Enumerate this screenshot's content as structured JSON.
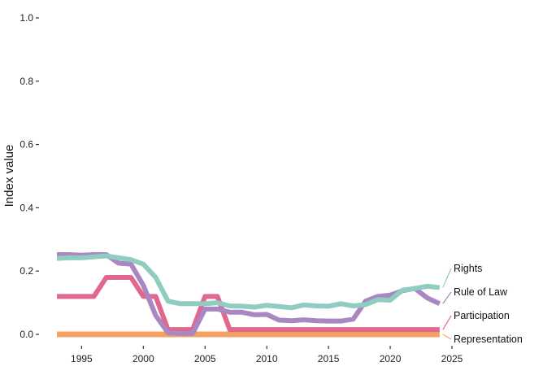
{
  "chart_data": {
    "type": "line",
    "title": "",
    "xlabel": "",
    "ylabel": "Index value",
    "xlim": [
      1993,
      2025
    ],
    "ylim": [
      0,
      1.0
    ],
    "xticks": [
      1995,
      2000,
      2005,
      2010,
      2015,
      2020,
      2025
    ],
    "yticks": [
      "0.0",
      "0.2",
      "0.4",
      "0.6",
      "0.8",
      "1.0"
    ],
    "grid": false,
    "legend_placement": "right, labels at line ends",
    "x": [
      1993,
      1994,
      1995,
      1996,
      1997,
      1998,
      1999,
      2000,
      2001,
      2002,
      2003,
      2004,
      2005,
      2006,
      2007,
      2008,
      2009,
      2010,
      2011,
      2012,
      2013,
      2014,
      2015,
      2016,
      2017,
      2018,
      2019,
      2020,
      2021,
      2022,
      2023,
      2024
    ],
    "series": [
      {
        "name": "Rights",
        "color": "#8fcdc1",
        "values": [
          0.24,
          0.242,
          0.242,
          0.245,
          0.248,
          0.242,
          0.236,
          0.222,
          0.18,
          0.105,
          0.097,
          0.097,
          0.097,
          0.1,
          0.09,
          0.089,
          0.086,
          0.092,
          0.088,
          0.084,
          0.093,
          0.09,
          0.089,
          0.097,
          0.09,
          0.094,
          0.11,
          0.108,
          0.14,
          0.145,
          0.152,
          0.148
        ]
      },
      {
        "name": "Rule of Law",
        "color": "#a887c2",
        "values": [
          0.252,
          0.252,
          0.25,
          0.252,
          0.252,
          0.225,
          0.222,
          0.155,
          0.06,
          0.005,
          0.003,
          0.003,
          0.08,
          0.08,
          0.07,
          0.07,
          0.062,
          0.063,
          0.045,
          0.043,
          0.046,
          0.043,
          0.042,
          0.042,
          0.048,
          0.105,
          0.12,
          0.124,
          0.138,
          0.145,
          0.115,
          0.097
        ]
      },
      {
        "name": "Participation",
        "color": "#e0688c",
        "values": [
          0.12,
          0.12,
          0.12,
          0.12,
          0.18,
          0.18,
          0.18,
          0.12,
          0.12,
          0.015,
          0.015,
          0.015,
          0.12,
          0.12,
          0.015,
          0.015,
          0.015,
          0.015,
          0.015,
          0.015,
          0.015,
          0.015,
          0.015,
          0.015,
          0.015,
          0.015,
          0.015,
          0.015,
          0.015,
          0.015,
          0.015,
          0.015
        ]
      },
      {
        "name": "Representation",
        "color": "#f4a261",
        "values": [
          0,
          0,
          0,
          0,
          0,
          0,
          0,
          0,
          0,
          0,
          0,
          0,
          0,
          0,
          0,
          0,
          0,
          0,
          0,
          0,
          0,
          0,
          0,
          0,
          0,
          0,
          0,
          0,
          0,
          0,
          0,
          0
        ]
      }
    ],
    "legend_labels": [
      "Rights",
      "Rule of Law",
      "Participation",
      "Representation"
    ]
  }
}
